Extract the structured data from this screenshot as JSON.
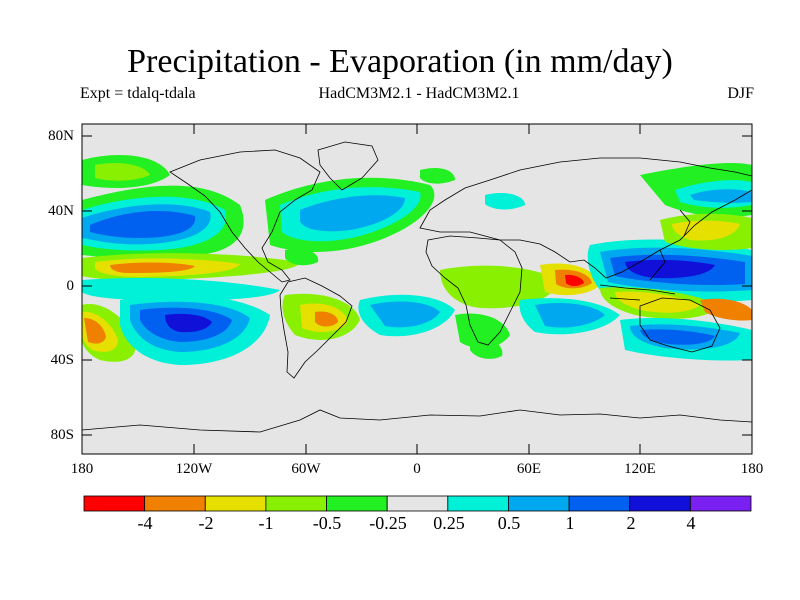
{
  "title": "Precipitation - Evaporation (in mm/day)",
  "experiment": "Expt = tdalq-tdala",
  "model_comparison": "HadCM3M2.1 - HadCM3M2.1",
  "season": "DJF",
  "axes": {
    "lat_ticks": [
      "80N",
      "40N",
      "0",
      "40S",
      "80S"
    ],
    "lon_ticks": [
      "180",
      "120W",
      "60W",
      "0",
      "60E",
      "120E",
      "180"
    ]
  },
  "colorbar": {
    "labels": [
      "-4",
      "-2",
      "-1",
      "-0.5",
      "-0.25",
      "0.25",
      "0.5",
      "1",
      "2",
      "4"
    ],
    "bins": [
      {
        "color": "#ff0000"
      },
      {
        "color": "#f08000"
      },
      {
        "color": "#e6e000"
      },
      {
        "color": "#88f000"
      },
      {
        "color": "#22f022"
      },
      {
        "color": "#e5e5e5"
      },
      {
        "color": "#00f0d8"
      },
      {
        "color": "#00a8f0"
      },
      {
        "color": "#0060f0"
      },
      {
        "color": "#1010d8"
      },
      {
        "color": "#7a20f0"
      }
    ]
  },
  "map": {
    "ocean_neutral_color": "#e5e5e5",
    "coastline_color": "#000000"
  }
}
